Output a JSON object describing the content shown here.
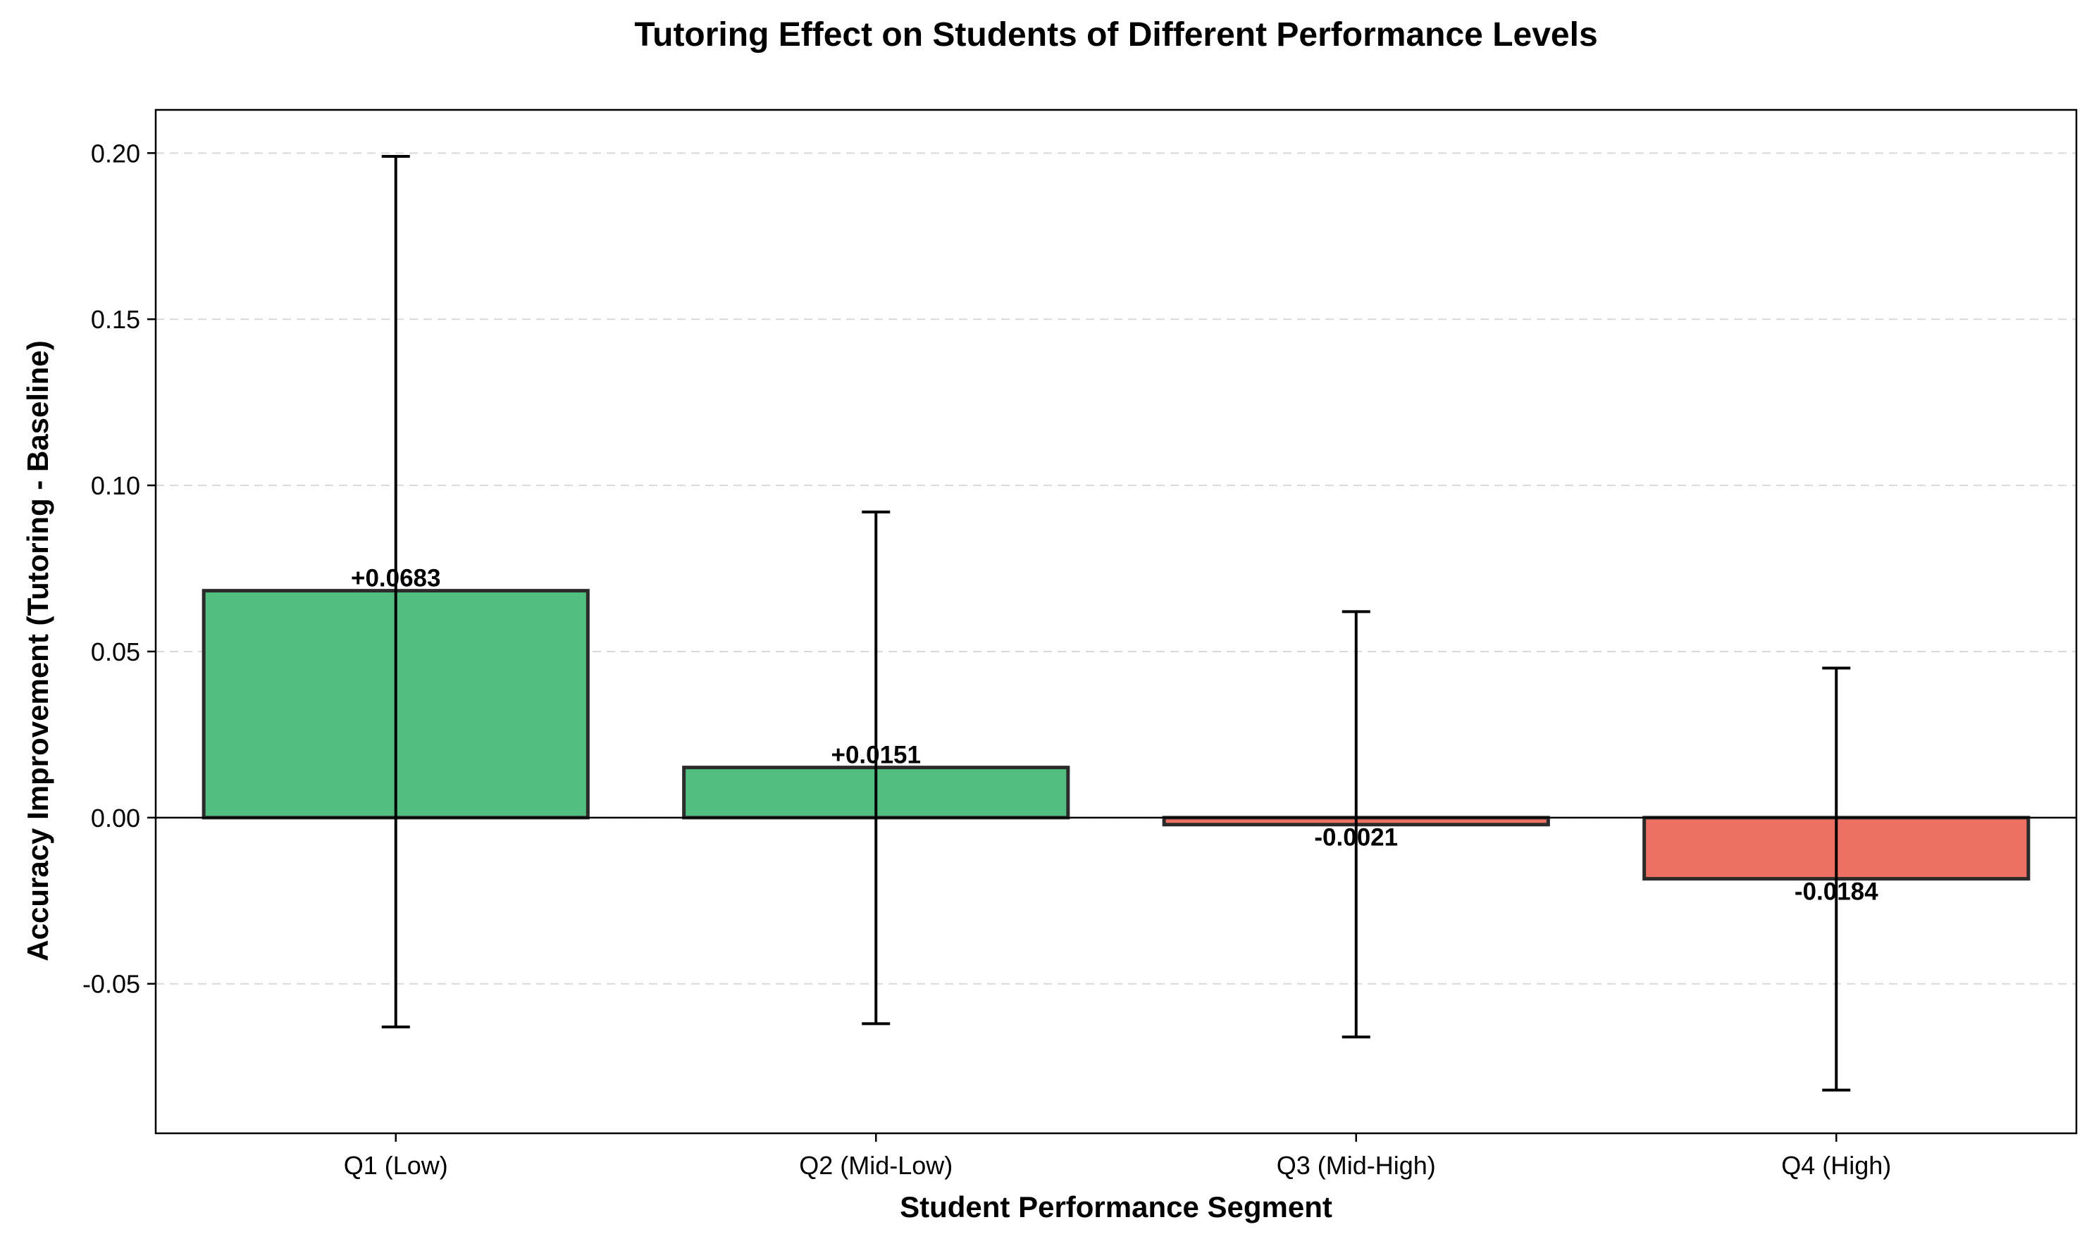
{
  "chart_data": {
    "type": "bar",
    "title": "Tutoring Effect on Students of Different Performance Levels",
    "xlabel": "Student Performance Segment",
    "ylabel": "Accuracy Improvement (Tutoring - Baseline)",
    "categories": [
      "Q1 (Low)",
      "Q2 (Mid-Low)",
      "Q3 (Mid-High)",
      "Q4 (High)"
    ],
    "values": [
      0.0683,
      0.0151,
      -0.0021,
      -0.0184
    ],
    "value_labels": [
      "+0.0683",
      "+0.0151",
      "-0.0021",
      "-0.0184"
    ],
    "error_low": [
      -0.063,
      -0.062,
      -0.066,
      -0.082
    ],
    "error_high": [
      0.199,
      0.092,
      0.062,
      0.045
    ],
    "ylim": [
      -0.095,
      0.213
    ],
    "yticks": [
      -0.05,
      0.0,
      0.05,
      0.1,
      0.15,
      0.2
    ],
    "ytick_labels": [
      "-0.05",
      "0.00",
      "0.05",
      "0.10",
      "0.15",
      "0.20"
    ],
    "grid": "y-dashed",
    "colors": {
      "positive": "#52BE80",
      "negative": "#EC7063",
      "edge": "#2b2b2b",
      "grid": "#d9d9d9"
    }
  }
}
